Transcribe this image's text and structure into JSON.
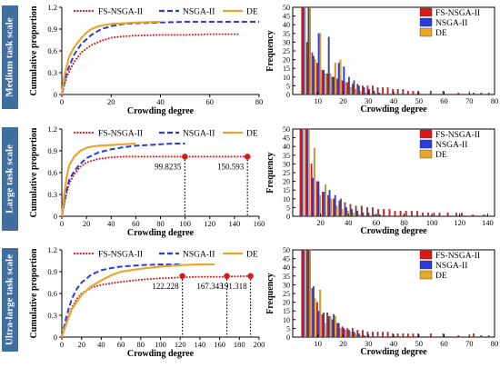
{
  "rows": [
    {
      "label": "Medium task scale"
    },
    {
      "label": "Large task scale"
    },
    {
      "label": "Ultra-large task scale"
    }
  ],
  "colors": {
    "fs": "#d7191c",
    "nsga": "#2b3bd6",
    "de": "#e7a72a",
    "side_box": "#3f6e9f"
  },
  "chart_data": [
    {
      "type": "line",
      "panel": "medium-cumulative",
      "xlabel": "Crowding degree",
      "ylabel": "Cumulative proportion",
      "xlim": [
        0,
        80
      ],
      "xticks": [
        0,
        20,
        40,
        60,
        80
      ],
      "ylim": [
        0,
        1.2
      ],
      "yticks": [
        0,
        0.3,
        0.6,
        0.9,
        1.2
      ],
      "ytick_labels": [
        "0",
        "0.3",
        "0.6",
        "0.9",
        "1.2"
      ],
      "legend": "top",
      "series": [
        {
          "name": "FS-NSGA-II",
          "style": "dotted",
          "x": [
            0,
            2,
            5,
            8,
            12,
            16,
            20,
            25,
            30,
            40,
            50,
            60,
            72
          ],
          "y": [
            0,
            0.25,
            0.45,
            0.58,
            0.68,
            0.74,
            0.78,
            0.8,
            0.81,
            0.82,
            0.82,
            0.83,
            0.83
          ]
        },
        {
          "name": "NSGA-II",
          "style": "dashed",
          "x": [
            0,
            2,
            5,
            8,
            12,
            16,
            20,
            25,
            30,
            40,
            50,
            60,
            70,
            80
          ],
          "y": [
            0,
            0.3,
            0.55,
            0.7,
            0.82,
            0.9,
            0.94,
            0.97,
            0.98,
            0.99,
            1.0,
            1.0,
            1.0,
            1.0
          ]
        },
        {
          "name": "DE",
          "style": "solid",
          "x": [
            0,
            1,
            3,
            5,
            8,
            10,
            12,
            15,
            18,
            20,
            25,
            30,
            40
          ],
          "y": [
            0,
            0.25,
            0.52,
            0.65,
            0.78,
            0.85,
            0.9,
            0.94,
            0.96,
            0.97,
            0.98,
            0.99,
            1.0
          ]
        }
      ],
      "annotations": []
    },
    {
      "type": "bar",
      "panel": "medium-frequency",
      "ylabel": "Frequency",
      "xlabel": "Crowding degree",
      "xlim": [
        0,
        80
      ],
      "xticks": [
        10,
        20,
        30,
        40,
        50,
        60,
        70,
        80
      ],
      "ylim": [
        0,
        50
      ],
      "yticks": [
        0,
        5,
        10,
        15,
        20,
        25,
        30,
        35,
        40,
        45,
        50
      ],
      "legend": "top-right",
      "series": [
        {
          "name": "FS-NSGA-II",
          "x": [
            4,
            6,
            8,
            10,
            12,
            14,
            16,
            18,
            20,
            22,
            24,
            26,
            28,
            30,
            32,
            34,
            36,
            38,
            40,
            42,
            44,
            46,
            48,
            50,
            55,
            60,
            66,
            72,
            75,
            78
          ],
          "values": [
            50,
            30,
            24,
            18,
            14,
            12,
            10,
            9,
            8,
            7,
            6,
            6,
            5,
            5,
            5,
            4,
            4,
            4,
            3,
            3,
            3,
            2,
            2,
            2,
            2,
            2,
            1,
            1,
            1,
            1
          ]
        },
        {
          "name": "NSGA-II",
          "x": [
            4,
            6,
            8,
            10,
            12,
            14,
            16,
            18,
            20,
            22,
            24,
            26,
            28,
            30,
            32,
            34
          ],
          "values": [
            50,
            50,
            22,
            35,
            14,
            33,
            10,
            18,
            16,
            10,
            8,
            5,
            4,
            3,
            2,
            1
          ]
        },
        {
          "name": "DE",
          "x": [
            4,
            6,
            8,
            10,
            12,
            14,
            16,
            18,
            20,
            22,
            24,
            26,
            28
          ],
          "values": [
            50,
            50,
            20,
            35,
            12,
            12,
            18,
            20,
            7,
            4,
            3,
            2,
            1
          ]
        }
      ]
    },
    {
      "type": "line",
      "panel": "large-cumulative",
      "xlabel": "Crowding degree",
      "ylabel": "Cumulative proportion",
      "xlim": [
        0,
        160
      ],
      "xticks": [
        0,
        20,
        40,
        60,
        80,
        100,
        120,
        140,
        160
      ],
      "ylim": [
        0,
        1.2
      ],
      "yticks": [
        0,
        0.3,
        0.6,
        0.9,
        1.2
      ],
      "ytick_labels": [
        "0",
        "0.3",
        "0.6",
        "0.9",
        "1.2"
      ],
      "legend": "top",
      "series": [
        {
          "name": "FS-NSGA-II",
          "style": "dotted",
          "x": [
            0,
            3,
            6,
            10,
            15,
            20,
            30,
            40,
            50,
            60,
            80,
            100,
            120,
            150
          ],
          "y": [
            0,
            0.25,
            0.45,
            0.58,
            0.68,
            0.74,
            0.79,
            0.81,
            0.82,
            0.82,
            0.82,
            0.82,
            0.82,
            0.82
          ]
        },
        {
          "name": "NSGA-II",
          "style": "dashed",
          "x": [
            0,
            3,
            6,
            10,
            15,
            20,
            30,
            40,
            50,
            60,
            70,
            80,
            90,
            100
          ],
          "y": [
            0,
            0.3,
            0.5,
            0.62,
            0.72,
            0.8,
            0.88,
            0.92,
            0.95,
            0.97,
            0.98,
            0.99,
            1.0,
            1.0
          ]
        },
        {
          "name": "DE",
          "style": "solid",
          "x": [
            0,
            2,
            4,
            6,
            10,
            15,
            20,
            25,
            30,
            40,
            50,
            60
          ],
          "y": [
            0,
            0.3,
            0.55,
            0.7,
            0.82,
            0.9,
            0.94,
            0.96,
            0.97,
            0.98,
            0.99,
            1.0
          ]
        }
      ],
      "annotations": [
        {
          "x": 99.8235,
          "y": 0.82,
          "text": "99.8235"
        },
        {
          "x": 150.593,
          "y": 0.82,
          "text": "150.593"
        }
      ]
    },
    {
      "type": "bar",
      "panel": "large-frequency",
      "ylabel": "Frequency",
      "xlabel": "Crowding degree",
      "xlim": [
        0,
        145
      ],
      "xticks": [
        20,
        40,
        60,
        80,
        100,
        120,
        140
      ],
      "ylim": [
        0,
        50
      ],
      "yticks": [
        0,
        5,
        10,
        15,
        20,
        25,
        30,
        35,
        40,
        45,
        50
      ],
      "legend": "top-right",
      "series": [
        {
          "name": "FS-NSGA-II",
          "x": [
            6,
            10,
            14,
            18,
            22,
            26,
            30,
            34,
            38,
            42,
            46,
            50,
            54,
            58,
            62,
            66,
            70,
            74,
            78,
            82,
            86,
            90,
            94,
            98,
            102,
            106,
            112,
            118,
            122,
            130,
            138
          ],
          "values": [
            50,
            50,
            30,
            20,
            14,
            12,
            10,
            9,
            8,
            7,
            6,
            6,
            5,
            5,
            4,
            4,
            4,
            3,
            3,
            3,
            3,
            3,
            2,
            2,
            2,
            2,
            2,
            2,
            2,
            1,
            1
          ]
        },
        {
          "name": "NSGA-II",
          "x": [
            6,
            10,
            14,
            18,
            22,
            26,
            30,
            34,
            38,
            42,
            46,
            50,
            54,
            58,
            62
          ],
          "values": [
            50,
            50,
            22,
            20,
            14,
            15,
            12,
            10,
            5,
            4,
            3,
            2,
            2,
            1,
            1
          ]
        },
        {
          "name": "DE",
          "x": [
            6,
            10,
            14,
            18,
            22,
            26,
            30,
            34,
            38,
            42,
            46
          ],
          "values": [
            50,
            50,
            39,
            12,
            18,
            10,
            6,
            4,
            3,
            2,
            1
          ]
        }
      ]
    },
    {
      "type": "line",
      "panel": "ultra-large-cumulative",
      "xlabel": "Crowding degree",
      "ylabel": "Cumulative proportion",
      "xlim": [
        0,
        200
      ],
      "xticks": [
        0,
        20,
        40,
        60,
        80,
        100,
        120,
        140,
        160,
        180,
        200
      ],
      "ylim": [
        0,
        1.2
      ],
      "yticks": [
        0,
        0.3,
        0.6,
        0.9,
        1.2
      ],
      "ytick_labels": [
        "0",
        "0.3",
        "0.6",
        "0.9",
        "1.2"
      ],
      "legend": "top",
      "series": [
        {
          "name": "FS-NSGA-II",
          "style": "dotted",
          "x": [
            0,
            5,
            10,
            15,
            20,
            30,
            40,
            60,
            80,
            100,
            120,
            140,
            160,
            191
          ],
          "y": [
            0,
            0.22,
            0.4,
            0.52,
            0.6,
            0.68,
            0.72,
            0.76,
            0.79,
            0.81,
            0.82,
            0.83,
            0.83,
            0.84
          ]
        },
        {
          "name": "NSGA-II",
          "style": "dashed",
          "x": [
            0,
            5,
            10,
            15,
            20,
            30,
            40,
            50,
            60,
            80,
            100,
            120
          ],
          "y": [
            0,
            0.3,
            0.52,
            0.66,
            0.75,
            0.86,
            0.92,
            0.95,
            0.97,
            0.99,
            1.0,
            1.0
          ]
        },
        {
          "name": "DE",
          "style": "solid",
          "x": [
            0,
            5,
            10,
            20,
            30,
            40,
            50,
            60,
            80,
            100,
            120,
            140,
            155
          ],
          "y": [
            0,
            0.2,
            0.38,
            0.58,
            0.7,
            0.78,
            0.85,
            0.9,
            0.94,
            0.97,
            0.99,
            1.0,
            1.0
          ]
        }
      ],
      "annotations": [
        {
          "x": 122.228,
          "y": 0.84,
          "text": "122.228"
        },
        {
          "x": 167.343,
          "y": 0.84,
          "text": "167.343"
        },
        {
          "x": 191.318,
          "y": 0.84,
          "text": "191.318"
        }
      ]
    },
    {
      "type": "bar",
      "panel": "ultra-large-frequency",
      "ylabel": "Frequency",
      "xlabel": "Crowding degree",
      "xlim": [
        0,
        80
      ],
      "xticks": [
        10,
        20,
        30,
        40,
        50,
        60,
        70,
        80
      ],
      "ylim": [
        0,
        50
      ],
      "yticks": [
        0,
        5,
        10,
        15,
        20,
        25,
        30,
        35,
        40,
        45,
        50
      ],
      "legend": "top-right",
      "series": [
        {
          "name": "FS-NSGA-II",
          "x": [
            4,
            6,
            8,
            10,
            12,
            14,
            16,
            18,
            20,
            22,
            24,
            26,
            28,
            30,
            32,
            34,
            36,
            38,
            40,
            42,
            44,
            46,
            48,
            50,
            55,
            60,
            66,
            72,
            75,
            78
          ],
          "values": [
            50,
            50,
            28,
            20,
            13,
            14,
            10,
            8,
            6,
            5,
            5,
            4,
            4,
            3,
            3,
            3,
            3,
            3,
            2,
            2,
            2,
            2,
            2,
            2,
            2,
            2,
            1,
            2,
            1,
            1
          ]
        },
        {
          "name": "NSGA-II",
          "x": [
            4,
            6,
            8,
            10,
            12,
            14,
            16,
            18,
            20,
            22,
            24,
            26,
            28
          ],
          "values": [
            50,
            50,
            29,
            15,
            14,
            12,
            13,
            8,
            5,
            4,
            3,
            2,
            1
          ]
        },
        {
          "name": "DE",
          "x": [
            4,
            6,
            8,
            10,
            12,
            14,
            16,
            18,
            20,
            22,
            24,
            26
          ],
          "values": [
            50,
            50,
            22,
            27,
            8,
            12,
            12,
            5,
            4,
            3,
            2,
            1
          ]
        }
      ]
    }
  ]
}
